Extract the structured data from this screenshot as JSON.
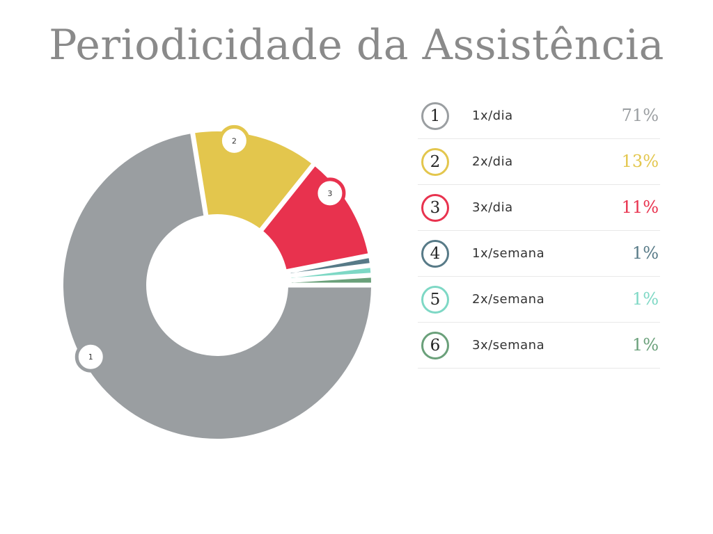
{
  "chart_data": {
    "type": "pie",
    "title": "Periodicidade da Assistência",
    "categories": [
      "1x/dia",
      "2x/dia",
      "3x/dia",
      "1x/semana",
      "2x/semana",
      "3x/semana"
    ],
    "values": [
      71,
      13,
      11,
      1,
      1,
      1
    ],
    "value_labels": [
      "71%",
      "13%",
      "11%",
      "1%",
      "1%",
      "1%"
    ],
    "slice_numbers": [
      "1",
      "2",
      "3",
      "4",
      "5",
      "6"
    ],
    "marker_labels": [
      "1",
      "2",
      "3"
    ],
    "colors": [
      "#9a9ea1",
      "#e3c64d",
      "#e8324e",
      "#577a87",
      "#7ed8c5",
      "#6aa07a"
    ],
    "donut": true,
    "legend": "right"
  }
}
